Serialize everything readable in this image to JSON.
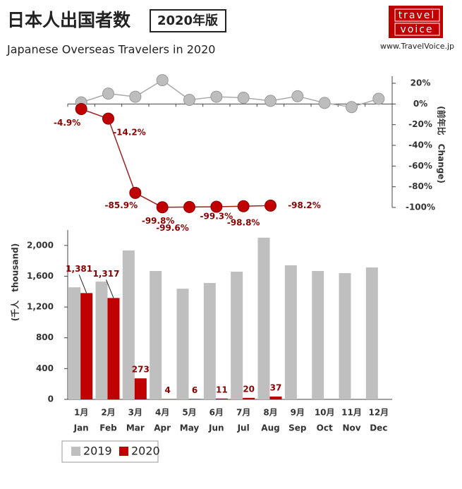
{
  "header": {
    "title": "日本人出国者数",
    "badge": "2020年版",
    "subtitle": "Japanese Overseas Travelers in 2020",
    "logo_top": "travel",
    "logo_bottom": "voice",
    "url": "www.TravelVoice.jp"
  },
  "chart_data": [
    {
      "type": "line",
      "axis_label": "(前年比　Change)",
      "categories": [
        "1月",
        "2月",
        "3月",
        "4月",
        "5月",
        "6月",
        "7月",
        "8月",
        "9月",
        "10月",
        "11月",
        "12月"
      ],
      "ylim": [
        -100,
        20
      ],
      "yticks": [
        {
          "value": 20,
          "label": "20%"
        },
        {
          "value": 0,
          "label": "0%"
        },
        {
          "value": -20,
          "label": "-20%"
        },
        {
          "value": -40,
          "label": "-40%"
        },
        {
          "value": -60,
          "label": "-60%"
        },
        {
          "value": -80,
          "label": "-80%"
        },
        {
          "value": -100,
          "label": "-100%"
        }
      ],
      "series": [
        {
          "name": "2019",
          "color": "#bdbdbd",
          "values": [
            1.5,
            10,
            7,
            23,
            4,
            7,
            6,
            3,
            7.5,
            1,
            -3,
            5
          ]
        },
        {
          "name": "2020",
          "color": "#c00000",
          "values": [
            -4.9,
            -14.2,
            -85.9,
            -99.8,
            -99.6,
            -99.3,
            -98.8,
            -98.2,
            null,
            null,
            null,
            null
          ],
          "value_labels": [
            "-4.9%",
            "-14.2%",
            "-85.9%",
            "-99.8%",
            "-99.6%",
            "-99.3%",
            "-98.8%",
            "-98.2%",
            null,
            null,
            null,
            null
          ]
        }
      ]
    },
    {
      "type": "bar",
      "axis_label": "(千人　thousand)",
      "categories": [
        "1月",
        "2月",
        "3月",
        "4月",
        "5月",
        "6月",
        "7月",
        "8月",
        "9月",
        "10月",
        "11月",
        "12月"
      ],
      "categories_en": [
        "Jan",
        "Feb",
        "Mar",
        "Apr",
        "May",
        "Jun",
        "Jul",
        "Aug",
        "Sep",
        "Oct",
        "Nov",
        "Dec"
      ],
      "ylim": [
        0,
        2200
      ],
      "yticks": [
        0,
        400,
        800,
        {
          "value": 1200,
          "label": "1,200"
        },
        {
          "value": 1600,
          "label": "1,600"
        },
        {
          "value": 2000,
          "label": "2,000"
        }
      ],
      "series": [
        {
          "name": "2019",
          "color": "#bfbfbf",
          "values": [
            1456,
            1530,
            1935,
            1668,
            1438,
            1512,
            1659,
            2101,
            1742,
            1668,
            1640,
            1714
          ]
        },
        {
          "name": "2020",
          "color": "#c00000",
          "values": [
            1381,
            1317,
            273,
            4,
            6,
            11,
            20,
            37,
            null,
            null,
            null,
            null
          ],
          "value_labels": [
            "1,381",
            "1,317",
            "273",
            "4",
            "6",
            "11",
            "20",
            "37",
            null,
            null,
            null,
            null
          ]
        }
      ]
    }
  ]
}
